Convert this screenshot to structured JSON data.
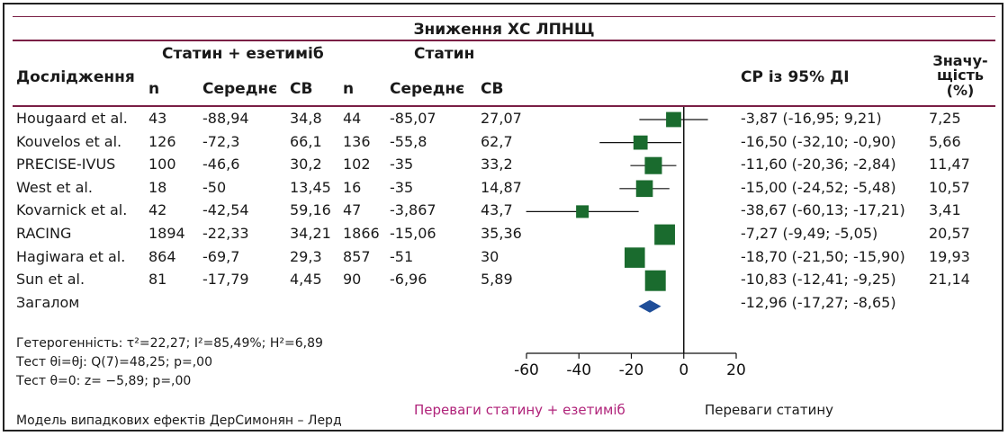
{
  "chart_data": {
    "type": "forest",
    "title": "Зниження ХС ЛПНЩ",
    "group_a_label": "Статин + езетиміб",
    "group_b_label": "Статин",
    "columns": {
      "study": "Дослідження",
      "n": "n",
      "mean": "Середнє",
      "sd": "СВ",
      "ci": "СР із 95% ДІ",
      "weight": "Значу-щість (%)",
      "weight_lines": [
        "Значу-",
        "щість",
        "(%)"
      ]
    },
    "studies": [
      {
        "name": "Hougaard et al.",
        "n1": "43",
        "mean1": "-88,94",
        "sd1": "34,8",
        "n2": "44",
        "mean2": "-85,07",
        "sd2": "27,07",
        "ci_text": "-3,87 (-16,95; 9,21)",
        "weight_text": "7,25",
        "est": -3.87,
        "lo": -16.95,
        "hi": 9.21,
        "weight": 7.25
      },
      {
        "name": "Kouvelos et al.",
        "n1": "126",
        "mean1": "-72,3",
        "sd1": "66,1",
        "n2": "136",
        "mean2": "-55,8",
        "sd2": "62,7",
        "ci_text": "-16,50 (-32,10; -0,90)",
        "weight_text": "5,66",
        "est": -16.5,
        "lo": -32.1,
        "hi": -0.9,
        "weight": 5.66
      },
      {
        "name": "PRECISE-IVUS",
        "n1": "100",
        "mean1": "-46,6",
        "sd1": "30,2",
        "n2": "102",
        "mean2": "-35",
        "sd2": "33,2",
        "ci_text": "-11,60 (-20,36; -2,84)",
        "weight_text": "11,47",
        "est": -11.6,
        "lo": -20.36,
        "hi": -2.84,
        "weight": 11.47
      },
      {
        "name": "West et al.",
        "n1": "18",
        "mean1": "-50",
        "sd1": "13,45",
        "n2": "16",
        "mean2": "-35",
        "sd2": "14,87",
        "ci_text": "-15,00 (-24,52; -5,48)",
        "weight_text": "10,57",
        "est": -15.0,
        "lo": -24.52,
        "hi": -5.48,
        "weight": 10.57
      },
      {
        "name": "Kovarnick et al.",
        "n1": "42",
        "mean1": "-42,54",
        "sd1": "59,16",
        "n2": "47",
        "mean2": "-3,867",
        "sd2": "43,7",
        "ci_text": "-38,67 (-60,13; -17,21)",
        "weight_text": "3,41",
        "est": -38.67,
        "lo": -60.13,
        "hi": -17.21,
        "weight": 3.41
      },
      {
        "name": "RACING",
        "n1": "1894",
        "mean1": "-22,33",
        "sd1": "34,21",
        "n2": "1866",
        "mean2": "-15,06",
        "sd2": "35,36",
        "ci_text": "-7,27 (-9,49; -5,05)",
        "weight_text": "20,57",
        "est": -7.27,
        "lo": -9.49,
        "hi": -5.05,
        "weight": 20.57
      },
      {
        "name": "Hagiwara et al.",
        "n1": "864",
        "mean1": "-69,7",
        "sd1": "29,3",
        "n2": "857",
        "mean2": "-51",
        "sd2": "30",
        "ci_text": "-18,70 (-21,50; -15,90)",
        "weight_text": "19,93",
        "est": -18.7,
        "lo": -21.5,
        "hi": -15.9,
        "weight": 19.93
      },
      {
        "name": "Sun et al.",
        "n1": "81",
        "mean1": "-17,79",
        "sd1": "4,45",
        "n2": "90",
        "mean2": "-6,96",
        "sd2": "5,89",
        "ci_text": "-10,83 (-12,41; -9,25)",
        "weight_text": "21,14",
        "est": -10.83,
        "lo": -12.41,
        "hi": -9.25,
        "weight": 21.14
      }
    ],
    "overall": {
      "name": "Загалом",
      "ci_text": "-12,96 (-17,27; -8,65)",
      "est": -12.96,
      "lo": -17.27,
      "hi": -8.65
    },
    "stats": {
      "heterogeneity": "Гетерогенність: τ²=22,27; I²=85,49%; H²=6,89",
      "q_test": "Тест θi=θj: Q(7)=48,25; p=,00",
      "z_test": "Тест θ=0: z= −5,89; p=,00",
      "model": "Модель випадкових ефектів ДерСимонян – Лерд"
    },
    "xaxis": {
      "min": -60,
      "max": 20,
      "ticks": [
        -60,
        -40,
        -20,
        0,
        20
      ],
      "tick_labels": [
        "-60",
        "-40",
        "-20",
        "0",
        "20"
      ]
    },
    "favors_left": "Переваги статину + езетиміб",
    "favors_right": "Переваги статину",
    "colors": {
      "study_marker": "#1a6b2e",
      "overall_marker": "#1f4e99",
      "rule": "#7a1f45",
      "favors_left": "#b0237a",
      "favors_right": "#1a1a1a"
    }
  }
}
